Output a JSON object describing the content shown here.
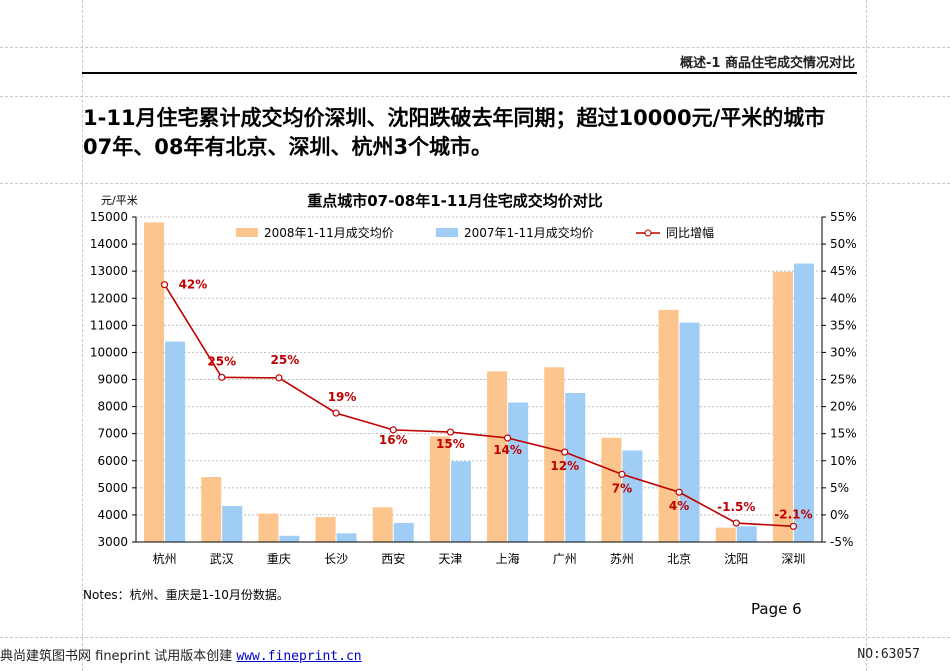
{
  "header": {
    "section_label": "概述-1  商品住宅成交情况对比"
  },
  "headline": {
    "line1": "1-11月住宅累计成交均价深圳、沈阳跌破去年同期；超过10000元/平米的城市",
    "line2": "07年、08年有北京、深圳、杭州3个城市。"
  },
  "chart_data": {
    "type": "bar",
    "title": "重点城市07-08年1-11月住宅成交均价对比",
    "ylabel": "元/平米",
    "categories": [
      "杭州",
      "武汉",
      "重庆",
      "长沙",
      "西安",
      "天津",
      "上海",
      "广州",
      "苏州",
      "北京",
      "沈阳",
      "深圳"
    ],
    "series": [
      {
        "name": "2008年1-11月成交均价",
        "type": "bar",
        "color": "#fcc58d",
        "values": [
          14800,
          5400,
          4050,
          3920,
          4280,
          6900,
          9300,
          9450,
          6850,
          11570,
          3530,
          12980
        ]
      },
      {
        "name": "2007年1-11月成交均价",
        "type": "bar",
        "color": "#9fcdf6",
        "values": [
          10400,
          4330,
          3230,
          3320,
          3700,
          5980,
          8150,
          8500,
          6380,
          11100,
          3580,
          13280
        ]
      },
      {
        "name": "同比增幅",
        "type": "line",
        "axis": "right",
        "color": "#c00000",
        "values": [
          42.5,
          25.4,
          25.3,
          18.8,
          15.7,
          15.3,
          14.2,
          11.6,
          7.5,
          4.2,
          -1.5,
          -2.1
        ],
        "labels": [
          "42%",
          "25%",
          "25%",
          "19%",
          "16%",
          "15%",
          "14%",
          "12%",
          "7%",
          "4%",
          "-1.5%",
          "-2.1%"
        ]
      }
    ],
    "ylim": [
      3000,
      15000
    ],
    "y_ticks": [
      3000,
      4000,
      5000,
      6000,
      7000,
      8000,
      9000,
      10000,
      11000,
      12000,
      13000,
      14000,
      15000
    ],
    "y2lim": [
      -5,
      55
    ],
    "y2_ticks": [
      "-5%",
      "0%",
      "5%",
      "10%",
      "15%",
      "20%",
      "25%",
      "30%",
      "35%",
      "40%",
      "45%",
      "50%",
      "55%"
    ],
    "grid": "horizontal-dashed",
    "legend": "top-inside"
  },
  "notes": "Notes：杭州、重庆是1-10月份数据。",
  "page": "Page 6",
  "footer": {
    "left_text": "典尚建筑图书网 fineprint 试用版本创建",
    "link_text": "www.fineprint.cn",
    "right_text": "NO:63057"
  }
}
